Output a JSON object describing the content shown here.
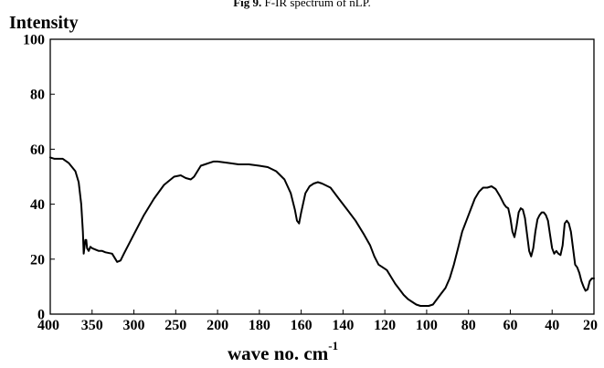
{
  "caption": {
    "bold": "Fig 9.",
    "text": "F-IR spectrum of nLP."
  },
  "chart_data": {
    "type": "line",
    "title": "",
    "xlabel": "wave no. cm",
    "xlabel_sup": "-1",
    "ylabel": "Intensity",
    "xlim": [
      400,
      20
    ],
    "ylim": [
      0,
      100
    ],
    "x_ticks": [
      400,
      350,
      300,
      250,
      200,
      180,
      160,
      140,
      120,
      100,
      80,
      60,
      40,
      20
    ],
    "y_ticks": [
      0,
      20,
      40,
      60,
      80,
      100
    ],
    "grid": false,
    "legend": "none",
    "line_color": "#000000",
    "series": [
      {
        "x": [
          400,
          395,
          385,
          378,
          370,
          366,
          363,
          361,
          360,
          358,
          357,
          356,
          354,
          352,
          350,
          346,
          342,
          338,
          334,
          326,
          320,
          316,
          312,
          300,
          288,
          276,
          264,
          252,
          244,
          238,
          232,
          228,
          224,
          220,
          215,
          210,
          205,
          200,
          195,
          190,
          185,
          180,
          176,
          172,
          168,
          165,
          163,
          162,
          161,
          160,
          158,
          156,
          154,
          152,
          150,
          146,
          142,
          138,
          134,
          130,
          127,
          125,
          123,
          121,
          119,
          117,
          115,
          113,
          111,
          109,
          107,
          105,
          103,
          101,
          99,
          97,
          95,
          93,
          91,
          89,
          87,
          85,
          83,
          81,
          79,
          77,
          75,
          73,
          71,
          69,
          67,
          65,
          63,
          62,
          61,
          60,
          59,
          58,
          57,
          56,
          55,
          54,
          53,
          52,
          51,
          50,
          49,
          48,
          47,
          46,
          45,
          44,
          43,
          42,
          41,
          40,
          39,
          38,
          37,
          36,
          35,
          34,
          33,
          32,
          31,
          30,
          29,
          28,
          27,
          26,
          25,
          24,
          23,
          22,
          21,
          20
        ],
        "y": [
          57,
          56.5,
          56.5,
          55,
          52,
          48,
          40,
          30,
          22,
          27,
          27,
          24,
          23,
          24.5,
          24,
          23.5,
          23,
          23,
          22.5,
          22,
          19,
          19.5,
          22,
          29,
          36,
          42,
          47,
          50,
          50.5,
          49.5,
          49,
          50,
          52,
          54,
          54.5,
          55,
          55.5,
          55.5,
          55,
          54.5,
          54.5,
          54,
          53.5,
          52,
          49,
          44,
          38,
          34,
          33,
          37,
          44,
          46.5,
          47.5,
          48,
          47.5,
          46,
          42,
          38,
          34,
          29,
          25,
          21,
          18,
          17,
          16,
          13.5,
          11,
          9,
          7,
          5.5,
          4.5,
          3.5,
          3,
          3,
          3,
          3.5,
          5.5,
          7.5,
          9.5,
          13,
          18,
          24,
          30,
          34,
          38,
          42,
          44.5,
          46,
          46,
          46.5,
          45.5,
          43,
          40,
          39,
          38.5,
          35,
          30,
          28,
          32,
          37,
          38.5,
          38,
          35,
          29,
          23,
          21,
          24,
          30,
          34.5,
          36,
          37,
          37,
          36,
          34,
          29,
          24,
          22,
          23,
          22,
          21.5,
          25,
          33,
          34,
          33,
          30,
          24,
          18,
          17,
          15,
          12,
          10,
          8.5,
          9,
          12,
          13,
          13
        ]
      }
    ]
  }
}
